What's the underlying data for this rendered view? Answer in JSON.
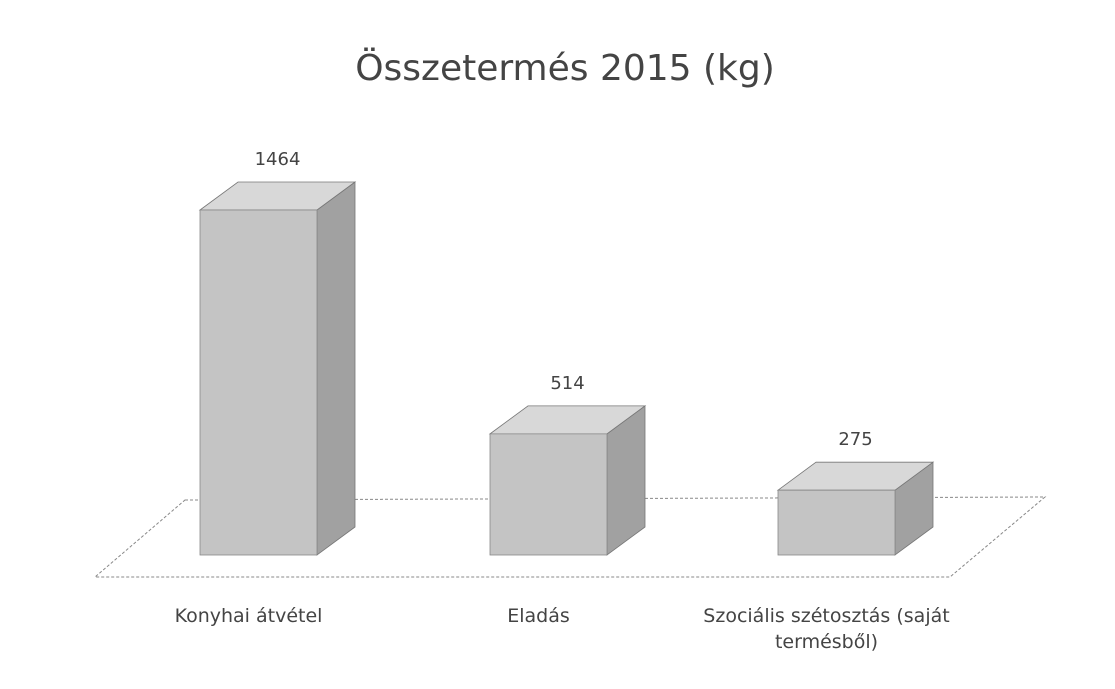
{
  "chart_data": {
    "type": "bar3d",
    "title": "Összetermés 2015 (kg)",
    "categories": [
      "Konyhai átvétel",
      "Eladás",
      "Szociális szétosztás (saját termésből)"
    ],
    "values": [
      1464,
      514,
      275
    ],
    "color": "#c4c4c4"
  }
}
